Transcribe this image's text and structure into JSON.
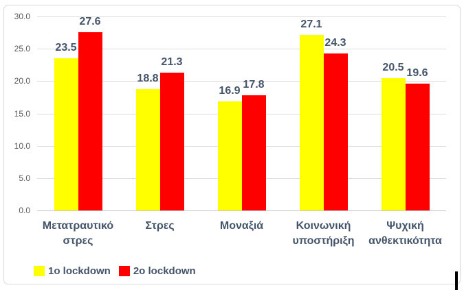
{
  "chart_data": {
    "type": "bar",
    "title": "",
    "categories": [
      "Μετατραυτικό στρες",
      "Στρες",
      "Μοναξιά",
      "Κοινωνική υποστήριξη",
      "Ψυχική ανθεκτικότητα"
    ],
    "series": [
      {
        "name": "1ο lockdown",
        "color": "#FFFF00",
        "values": [
          23.5,
          18.8,
          16.9,
          27.1,
          20.5
        ]
      },
      {
        "name": "2ο lockdown",
        "color": "#FF0000",
        "values": [
          27.6,
          21.3,
          17.8,
          24.3,
          19.6
        ]
      }
    ],
    "y_axis": {
      "min": 0,
      "max": 30,
      "step": 5,
      "tick_labels": [
        "0.0",
        "5.0",
        "10.0",
        "15.0",
        "20.0",
        "25.0",
        "30.0"
      ]
    },
    "xlabel": "",
    "ylabel": "",
    "grid": true,
    "legend_position": "bottom-left",
    "data_labels": true
  },
  "colors": {
    "series_1": "#FFFF00",
    "series_2": "#FF0000",
    "data_label_text": "#44546A",
    "axis_tick_text": "#595959",
    "gridline": "#DCDCDC",
    "axis_line": "#C9C9C9",
    "chart_border": "#D9D9D9",
    "background": "#FFFFFF",
    "caret": "#000000"
  }
}
